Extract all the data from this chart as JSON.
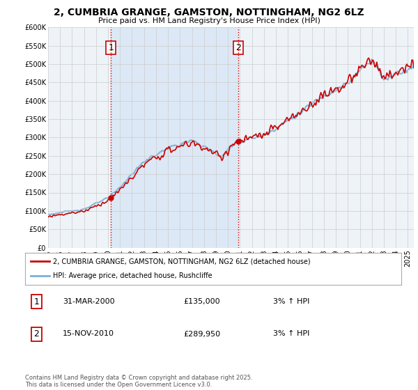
{
  "title": "2, CUMBRIA GRANGE, GAMSTON, NOTTINGHAM, NG2 6LZ",
  "subtitle": "Price paid vs. HM Land Registry's House Price Index (HPI)",
  "legend_line1": "2, CUMBRIA GRANGE, GAMSTON, NOTTINGHAM, NG2 6LZ (detached house)",
  "legend_line2": "HPI: Average price, detached house, Rushcliffe",
  "annotation1_label": "1",
  "annotation1_date": "31-MAR-2000",
  "annotation1_price": "£135,000",
  "annotation1_hpi": "3% ↑ HPI",
  "annotation2_label": "2",
  "annotation2_date": "15-NOV-2010",
  "annotation2_price": "£289,950",
  "annotation2_hpi": "3% ↑ HPI",
  "footnote": "Contains HM Land Registry data © Crown copyright and database right 2025.\nThis data is licensed under the Open Government Licence v3.0.",
  "xmin": 1995,
  "xmax": 2025.5,
  "ymin": 0,
  "ymax": 600000,
  "ytick_step": 50000,
  "background_color": "#ffffff",
  "chart_bg_color": "#eef3f8",
  "grid_color": "#cccccc",
  "hpi_line_color": "#7bafd4",
  "price_line_color": "#cc0000",
  "vline_color": "#cc0000",
  "shading_color": "#dce8f5",
  "annotation_box_edge": "#cc0000",
  "purchase1_year": 2000.25,
  "purchase1_price": 135000,
  "purchase2_year": 2010.88,
  "purchase2_price": 289950
}
